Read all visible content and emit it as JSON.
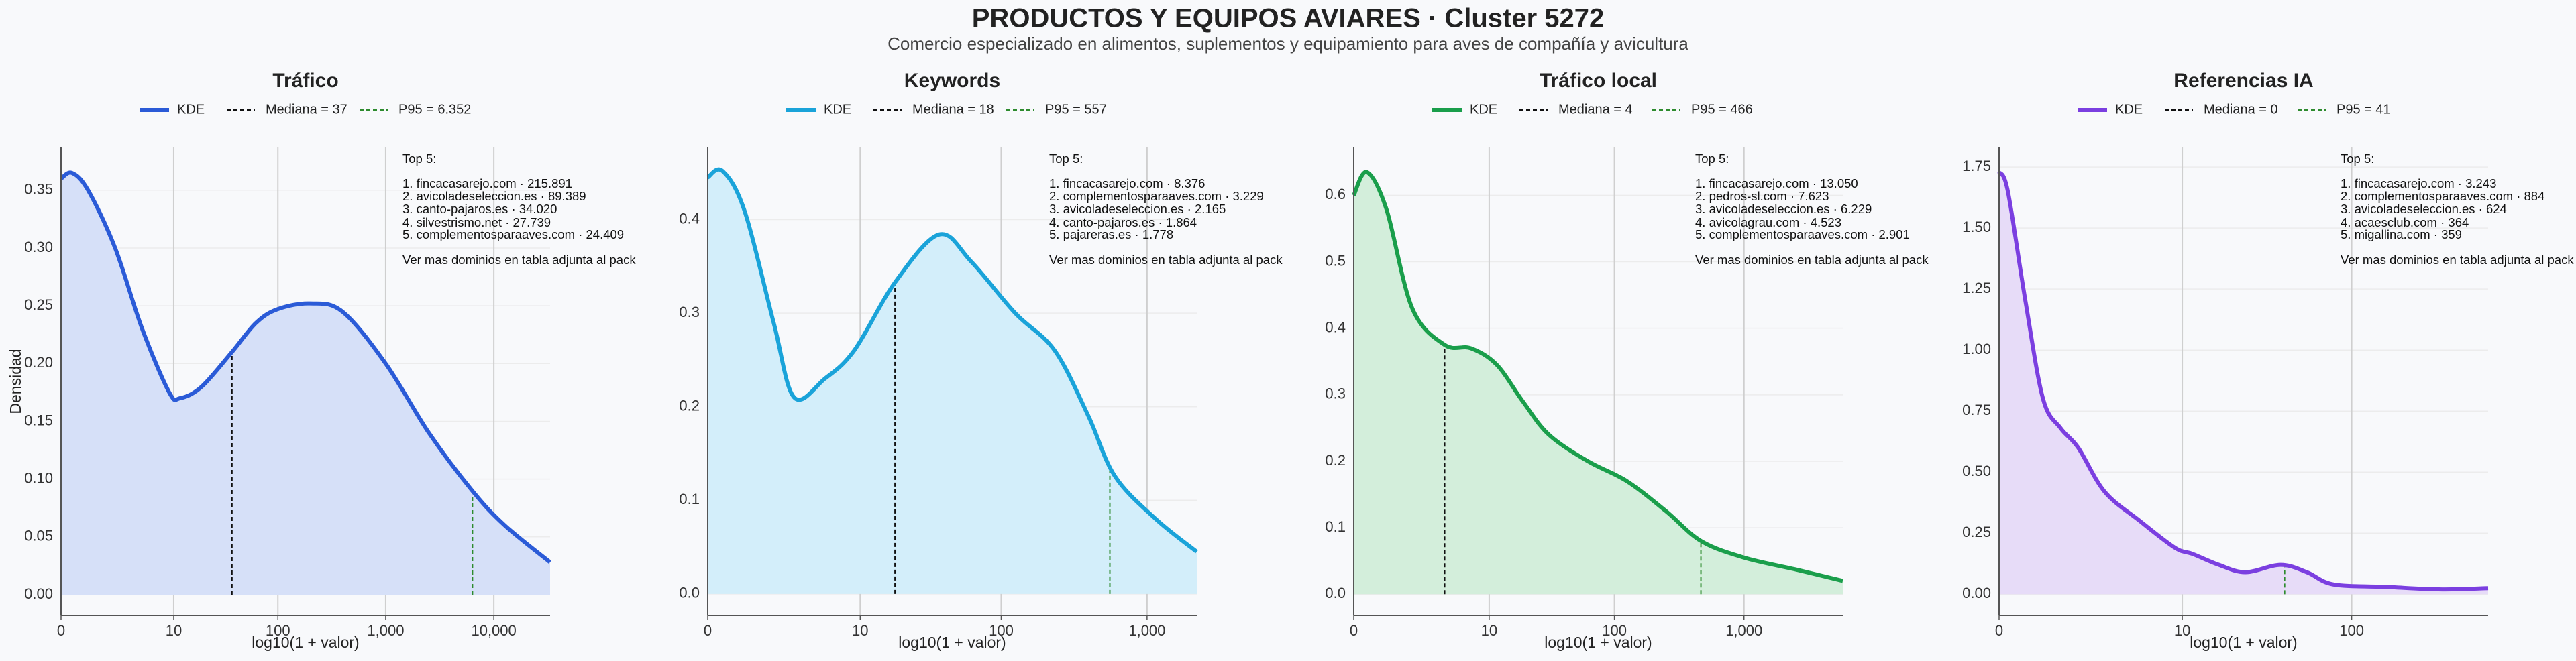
{
  "header": {
    "title": "PRODUCTOS Y EQUIPOS AVIARES · Cluster 5272",
    "subtitle": "Comercio especializado en alimentos, suplementos y equipamiento para aves de compañía y avicultura"
  },
  "chart_data": [
    {
      "type": "area",
      "title": "Tráfico",
      "xlabel": "log10(1 + valor)",
      "ylabel": "Densidad",
      "x": [
        0,
        0.1,
        0.25,
        0.5,
        0.75,
        1.0,
        1.1,
        1.3,
        1.58,
        1.8,
        2.0,
        2.3,
        2.6,
        3.0,
        3.4,
        3.8,
        4.1,
        4.52
      ],
      "series": [
        {
          "name": "KDE",
          "color": "#2b5bd7",
          "fill": "#d6e0f8",
          "values": [
            0.36,
            0.365,
            0.35,
            0.3,
            0.23,
            0.175,
            0.17,
            0.18,
            0.21,
            0.235,
            0.247,
            0.252,
            0.245,
            0.2,
            0.14,
            0.09,
            0.06,
            0.028
          ]
        }
      ],
      "markers": [
        {
          "name": "Mediana = 37",
          "x": 1.5798,
          "color": "#111111"
        },
        {
          "name": "P95 = 6.352",
          "x": 3.803,
          "color": "#2e8b2e"
        }
      ],
      "xlim": [
        0,
        4.52
      ],
      "ylim": [
        -0.018,
        0.387
      ],
      "xticks": [
        0,
        {
          "value": 1.0414,
          "label": "10"
        },
        {
          "value": 2.0043,
          "label": "100"
        },
        {
          "value": 3.0004,
          "label": "1,000"
        },
        {
          "value": 4.0,
          "label": "10,000"
        }
      ],
      "yticks": [
        {
          "value": 0,
          "label": "0.00"
        },
        {
          "value": 0.05,
          "label": "0.05"
        },
        {
          "value": 0.1,
          "label": "0.10"
        },
        {
          "value": 0.15,
          "label": "0.15"
        },
        {
          "value": 0.2,
          "label": "0.20"
        },
        {
          "value": 0.25,
          "label": "0.25"
        },
        {
          "value": 0.3,
          "label": "0.30"
        },
        {
          "value": 0.35,
          "label": "0.35"
        }
      ],
      "grid": true,
      "annotation": [
        "Top 5:",
        "1. fincacasarejo.com · 215.891",
        "2. avicoladeseleccion.es · 89.389",
        "3. canto-pajaros.es · 34.020",
        "4. silvestrismo.net · 27.739",
        "5. complementosparaaves.com · 24.409",
        "Ver mas dominios en tabla adjunta al pack"
      ]
    },
    {
      "type": "area",
      "title": "Keywords",
      "xlabel": "log10(1 + valor)",
      "x": [
        0,
        0.1,
        0.25,
        0.45,
        0.59,
        0.8,
        1.0,
        1.28,
        1.58,
        1.8,
        2.1,
        2.37,
        2.6,
        2.78,
        3.06,
        3.34
      ],
      "series": [
        {
          "name": "KDE",
          "color": "#1aa3d9",
          "fill": "#d3eefa",
          "values": [
            0.445,
            0.452,
            0.41,
            0.29,
            0.21,
            0.23,
            0.26,
            0.333,
            0.384,
            0.355,
            0.3,
            0.26,
            0.19,
            0.126,
            0.08,
            0.045
          ]
        }
      ],
      "markers": [
        {
          "name": "Mediana = 18",
          "x": 1.2788,
          "color": "#111111"
        },
        {
          "name": "P95 = 557",
          "x": 2.7466,
          "color": "#2e8b2e"
        }
      ],
      "xlim": [
        0,
        3.34
      ],
      "ylim": [
        -0.023,
        0.477
      ],
      "xticks": [
        0,
        {
          "value": 1.0414,
          "label": "10"
        },
        {
          "value": 2.0043,
          "label": "100"
        },
        {
          "value": 3.0004,
          "label": "1,000"
        }
      ],
      "yticks": [
        {
          "value": 0,
          "label": "0.0"
        },
        {
          "value": 0.1,
          "label": "0.1"
        },
        {
          "value": 0.2,
          "label": "0.2"
        },
        {
          "value": 0.3,
          "label": "0.3"
        },
        {
          "value": 0.4,
          "label": "0.4"
        }
      ],
      "grid": true,
      "annotation": [
        "Top 5:",
        "1. fincacasarejo.com · 8.376",
        "2. complementosparaaves.com · 3.229",
        "3. avicoladeseleccion.es · 2.165",
        "4. canto-pajaros.es · 1.864",
        "5. pajareras.es · 1.778",
        "Ver mas dominios en tabla adjunta al pack"
      ]
    },
    {
      "type": "area",
      "title": "Tráfico local",
      "xlabel": "log10(1 + valor)",
      "x": [
        0,
        0.1,
        0.25,
        0.45,
        0.7,
        0.9,
        1.1,
        1.3,
        1.5,
        1.8,
        2.1,
        2.4,
        2.67,
        3.0,
        3.4,
        3.76
      ],
      "series": [
        {
          "name": "KDE",
          "color": "#1a9e4b",
          "fill": "#d3eedb",
          "values": [
            0.6,
            0.635,
            0.58,
            0.43,
            0.375,
            0.37,
            0.345,
            0.29,
            0.24,
            0.2,
            0.17,
            0.125,
            0.08,
            0.055,
            0.037,
            0.02
          ]
        }
      ],
      "markers": [
        {
          "name": "Mediana = 4",
          "x": 0.699,
          "color": "#111111"
        },
        {
          "name": "P95 = 466",
          "x": 2.6693,
          "color": "#2e8b2e"
        }
      ],
      "xlim": [
        0,
        3.76
      ],
      "ylim": [
        -0.032,
        0.672
      ],
      "xticks": [
        0,
        {
          "value": 1.0414,
          "label": "10"
        },
        {
          "value": 2.0043,
          "label": "100"
        },
        {
          "value": 3.0004,
          "label": "1,000"
        }
      ],
      "yticks": [
        {
          "value": 0,
          "label": "0.0"
        },
        {
          "value": 0.1,
          "label": "0.1"
        },
        {
          "value": 0.2,
          "label": "0.2"
        },
        {
          "value": 0.3,
          "label": "0.3"
        },
        {
          "value": 0.4,
          "label": "0.4"
        },
        {
          "value": 0.5,
          "label": "0.5"
        },
        {
          "value": 0.6,
          "label": "0.6"
        }
      ],
      "grid": true,
      "annotation": [
        "Top 5:",
        "1. fincacasarejo.com · 13.050",
        "2. pedros-sl.com · 7.623",
        "3. avicoladeseleccion.es · 6.229",
        "4. avicolagrau.com · 4.523",
        "5. complementosparaaves.com · 2.901",
        "Ver mas dominios en tabla adjunta al pack"
      ]
    },
    {
      "type": "area",
      "title": "Referencias IA",
      "xlabel": "log10(1 + valor)",
      "x": [
        0,
        0.05,
        0.15,
        0.25,
        0.35,
        0.45,
        0.6,
        0.8,
        1.0,
        1.1,
        1.25,
        1.4,
        1.6,
        1.75,
        1.9,
        2.2,
        2.5,
        2.78
      ],
      "series": [
        {
          "name": "KDE",
          "color": "#7b3fe0",
          "fill": "#e7dcf8",
          "values": [
            1.73,
            1.65,
            1.2,
            0.8,
            0.68,
            0.6,
            0.42,
            0.3,
            0.19,
            0.165,
            0.12,
            0.09,
            0.12,
            0.09,
            0.04,
            0.03,
            0.02,
            0.025
          ]
        }
      ],
      "markers": [
        {
          "name": "Mediana = 0",
          "x": 0,
          "color": "#111111"
        },
        {
          "name": "P95 = 41",
          "x": 1.6232,
          "color": "#2e8b2e"
        }
      ],
      "xlim": [
        0,
        2.78
      ],
      "ylim": [
        -0.087,
        1.83
      ],
      "xticks": [
        0,
        {
          "value": 1.0414,
          "label": "10"
        },
        {
          "value": 2.0043,
          "label": "100"
        }
      ],
      "yticks": [
        {
          "value": 0,
          "label": "0.00"
        },
        {
          "value": 0.25,
          "label": "0.25"
        },
        {
          "value": 0.5,
          "label": "0.50"
        },
        {
          "value": 0.75,
          "label": "0.75"
        },
        {
          "value": 1.0,
          "label": "1.00"
        },
        {
          "value": 1.25,
          "label": "1.25"
        },
        {
          "value": 1.5,
          "label": "1.50"
        },
        {
          "value": 1.75,
          "label": "1.75"
        }
      ],
      "grid": true,
      "annotation": [
        "Top 5:",
        "1. fincacasarejo.com · 3.243",
        "2. complementosparaaves.com · 884",
        "3. avicoladeseleccion.es · 624",
        "4. acaesclub.com · 364",
        "5. migallina.com · 359",
        "Ver mas dominios en tabla adjunta al pack"
      ]
    }
  ]
}
